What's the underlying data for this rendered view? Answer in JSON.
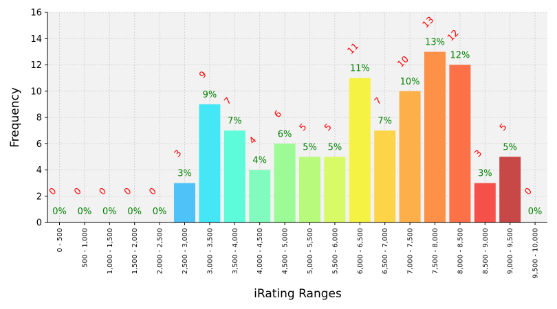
{
  "chart_data": {
    "type": "bar",
    "xlabel": "iRating Ranges",
    "ylabel": "Frequency",
    "ylim": [
      0,
      16
    ],
    "yticks": [
      0,
      2,
      4,
      6,
      8,
      10,
      12,
      14,
      16
    ],
    "grid": true,
    "categories": [
      "0 - 500",
      "500 - 1,000",
      "1,000 - 1,500",
      "1,500 - 2,000",
      "2,000 - 2,500",
      "2,500 - 3,000",
      "3,000 - 3,500",
      "3,500 - 4,000",
      "4,000 - 4,500",
      "4,500 - 5,000",
      "5,000 - 5,500",
      "5,500 - 6,000",
      "6,000 - 6,500",
      "6,500 - 7,000",
      "7,000 - 7,500",
      "7,500 - 8,000",
      "8,000 - 8,500",
      "8,500 - 9,000",
      "9,000 - 9,500",
      "9,500 - 10,000"
    ],
    "values": [
      0,
      0,
      0,
      0,
      0,
      3,
      9,
      7,
      4,
      6,
      5,
      5,
      11,
      7,
      10,
      13,
      12,
      3,
      5,
      0
    ],
    "count_labels": [
      "0",
      "0",
      "0",
      "0",
      "0",
      "3",
      "9",
      "7",
      "4",
      "6",
      "5",
      "5",
      "11",
      "7",
      "10",
      "13",
      "12",
      "3",
      "5",
      "0"
    ],
    "percent_labels": [
      "0%",
      "0%",
      "0%",
      "0%",
      "0%",
      "3%",
      "9%",
      "7%",
      "4%",
      "6%",
      "5%",
      "5%",
      "11%",
      "7%",
      "10%",
      "13%",
      "12%",
      "3%",
      "5%",
      "0%"
    ],
    "colors": [
      "#3f51b5",
      "#3b5fd0",
      "#3a73e8",
      "#3a88f2",
      "#3d9df6",
      "#4fc3f7",
      "#45e6f5",
      "#5efbdb",
      "#82fbbe",
      "#9cfb96",
      "#b8fb7c",
      "#d8fa66",
      "#f5f244",
      "#fdd448",
      "#fdb04a",
      "#fd9147",
      "#fd7148",
      "#f5514a",
      "#c84747",
      "#b03030"
    ],
    "plot_background": "#f2f2f2",
    "count_color": "#ff0000",
    "percent_color": "#008000"
  }
}
